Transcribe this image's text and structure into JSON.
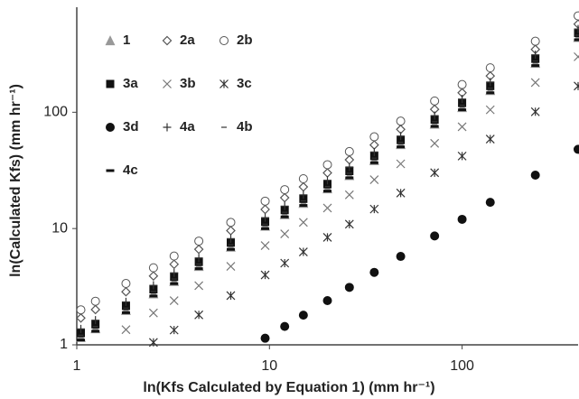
{
  "chart_data": {
    "type": "scatter",
    "x_label": "ln(Kfs Calculated by Equation 1) (mm hr⁻¹)",
    "y_label": "ln(Calculated Kfs) (mm hr⁻¹)",
    "log_x": true,
    "log_y": true,
    "xlim": [
      1,
      400
    ],
    "ylim": [
      1,
      800
    ],
    "xticks": [
      1,
      10,
      100
    ],
    "yticks": [
      1,
      10,
      100
    ],
    "x": [
      1.05,
      1.25,
      1.8,
      2.5,
      3.2,
      4.3,
      6.3,
      9.5,
      12,
      15,
      20,
      26,
      35,
      48,
      72,
      100,
      140,
      240,
      400
    ],
    "series": [
      {
        "name": "1",
        "color": "#999999",
        "marker": "triangle",
        "values": [
          1.16,
          1.38,
          1.98,
          2.75,
          3.52,
          4.73,
          6.93,
          10.5,
          13.2,
          16.5,
          22,
          28.6,
          38.5,
          52.8,
          79.2,
          110,
          154,
          264,
          440
        ]
      },
      {
        "name": "2a",
        "color": "#555555",
        "marker": "diamond",
        "values": [
          1.7,
          2.01,
          2.86,
          3.91,
          4.93,
          6.63,
          9.6,
          14.6,
          18.4,
          22.8,
          30.1,
          39,
          52.3,
          71.3,
          106,
          147,
          205,
          347,
          573
        ]
      },
      {
        "name": "2b",
        "color": "#555555",
        "marker": "circle-open",
        "values": [
          2.0,
          2.37,
          3.37,
          4.6,
          5.8,
          7.8,
          11.3,
          17.2,
          21.6,
          26.8,
          35.4,
          45.9,
          61.5,
          83.9,
          125,
          173,
          241,
          408,
          674
        ]
      },
      {
        "name": "3a",
        "color": "#111111",
        "marker": "square",
        "values": [
          1.26,
          1.5,
          2.16,
          3,
          3.84,
          5.16,
          7.56,
          11.4,
          14.4,
          18,
          24,
          31.2,
          42,
          57.6,
          86.4,
          120,
          168,
          288,
          480
        ]
      },
      {
        "name": "3b",
        "color": "#777777",
        "marker": "x",
        "values": [
          null,
          null,
          1.35,
          1.88,
          2.4,
          3.23,
          4.73,
          7.13,
          9,
          11.3,
          15,
          19.5,
          26.3,
          36,
          54,
          75,
          105,
          180,
          300
        ]
      },
      {
        "name": "3c",
        "color": "#333333",
        "marker": "asterisk",
        "values": [
          null,
          null,
          null,
          1.05,
          1.34,
          1.81,
          2.65,
          3.99,
          5.04,
          6.3,
          8.4,
          10.9,
          14.7,
          20.2,
          30.2,
          42,
          58.8,
          101,
          168
        ]
      },
      {
        "name": "3d",
        "color": "#111111",
        "marker": "circle",
        "values": [
          null,
          null,
          null,
          null,
          null,
          null,
          null,
          1.14,
          1.44,
          1.8,
          2.4,
          3.12,
          4.2,
          5.76,
          8.64,
          12,
          16.8,
          28.8,
          48
        ]
      },
      {
        "name": "4a",
        "color": "#333333",
        "marker": "plus",
        "values": [
          1.37,
          1.63,
          2.34,
          3.25,
          4.16,
          5.59,
          8.19,
          12.4,
          15.6,
          19.5,
          26,
          33.8,
          45.5,
          62.4,
          93.6,
          130,
          182,
          312,
          520
        ]
      },
      {
        "name": "4b",
        "color": "#333333",
        "marker": "dash",
        "values": [
          1.21,
          1.44,
          2.07,
          2.88,
          3.68,
          4.95,
          7.25,
          10.9,
          13.8,
          17.3,
          23,
          29.9,
          40.3,
          55.2,
          82.8,
          115,
          161,
          276,
          460
        ]
      },
      {
        "name": "4c",
        "color": "#111111",
        "marker": "bar",
        "values": [
          1.1,
          1.31,
          1.89,
          2.63,
          3.36,
          4.52,
          6.62,
          9.98,
          12.6,
          15.8,
          21,
          27.3,
          36.8,
          50.4,
          75.6,
          105,
          147,
          252,
          420
        ]
      }
    ]
  }
}
